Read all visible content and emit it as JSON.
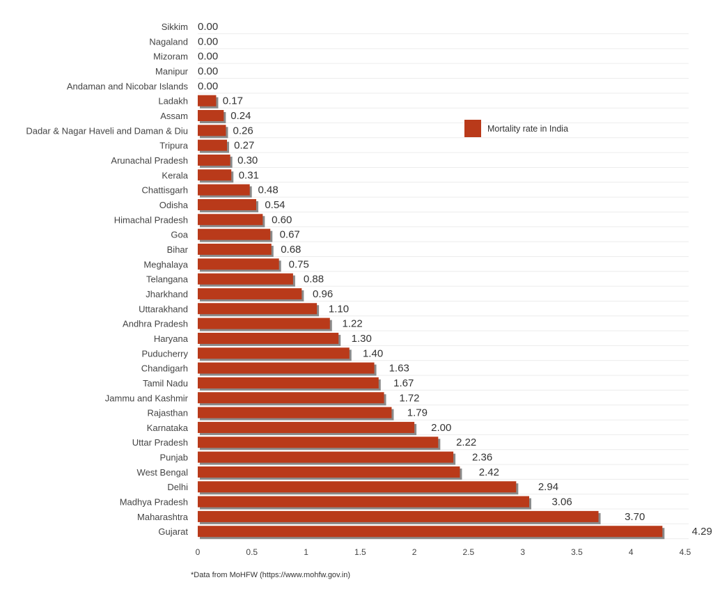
{
  "chart_data": {
    "type": "bar",
    "orientation": "horizontal",
    "categories": [
      "Sikkim",
      "Nagaland",
      "Mizoram",
      "Manipur",
      "Andaman and Nicobar Islands",
      "Ladakh",
      "Assam",
      "Dadar & Nagar Haveli and Daman & Diu",
      "Tripura",
      "Arunachal Pradesh",
      "Kerala",
      "Chattisgarh",
      "Odisha",
      "Himachal Pradesh",
      "Goa",
      "Bihar",
      "Meghalaya",
      "Telangana",
      "Jharkhand",
      "Uttarakhand",
      "Andhra Pradesh",
      "Haryana",
      "Puducherry",
      "Chandigarh",
      "Tamil Nadu",
      "Jammu and Kashmir",
      "Rajasthan",
      "Karnataka",
      "Uttar Pradesh",
      "Punjab",
      "West Bengal",
      "Delhi",
      "Madhya Pradesh",
      "Maharashtra",
      "Gujarat"
    ],
    "series": [
      {
        "name": "Mortality rate in India",
        "values": [
          0,
          0,
          0,
          0,
          0,
          0.17,
          0.24,
          0.26,
          0.27,
          0.3,
          0.31,
          0.48,
          0.54,
          0.6,
          0.67,
          0.68,
          0.75,
          0.88,
          0.96,
          1.1,
          1.22,
          1.3,
          1.4,
          1.63,
          1.67,
          1.72,
          1.79,
          2.0,
          2.22,
          2.36,
          2.42,
          2.94,
          3.06,
          3.7,
          4.29
        ],
        "labels": [
          "0.00",
          "0.00",
          "0.00",
          "0.00",
          "0.00",
          "0.17",
          "0.24",
          "0.26",
          "0.27",
          "0.30",
          "0.31",
          "0.48",
          "0.54",
          "0.60",
          "0.67",
          "0.68",
          "0.75",
          "0.88",
          "0.96",
          "1.10",
          "1.22",
          "1.30",
          "1.40",
          "1.63",
          "1.67",
          "1.72",
          "1.79",
          "2.00",
          "2.22",
          "2.36",
          "2.42",
          "2.94",
          "3.06",
          "3.70",
          "4.29"
        ],
        "color": "#b93a1a"
      }
    ],
    "xlim": [
      0,
      4.5
    ],
    "xticks": [
      "0",
      "0.5",
      "1",
      "1.5",
      "2",
      "2.5",
      "3",
      "3.5",
      "4",
      "4.5"
    ],
    "grid": true,
    "legend": "top-right",
    "footnote": "*Data from MoHFW (https://www.mohfw.gov.in)"
  }
}
